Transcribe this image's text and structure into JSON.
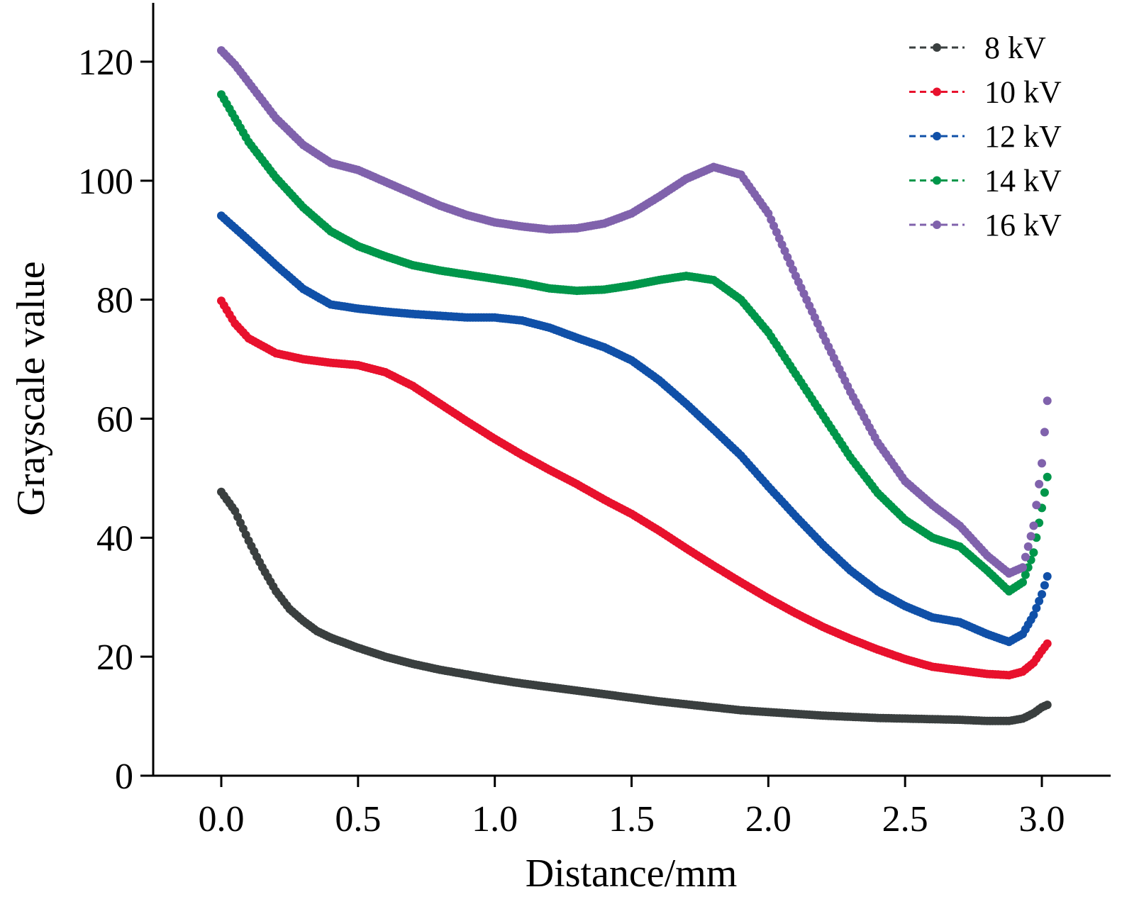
{
  "chart_data": {
    "type": "scatter",
    "title": "",
    "xlabel": "Distance/mm",
    "ylabel": "Grayscale value",
    "xlim": [
      -0.25,
      3.25
    ],
    "ylim": [
      0,
      130
    ],
    "xticks": [
      "0.0",
      "0.5",
      "1.0",
      "1.5",
      "2.0",
      "2.5",
      "3.0"
    ],
    "xtick_values": [
      0,
      0.5,
      1.0,
      1.5,
      2.0,
      2.5,
      3.0
    ],
    "yticks": [
      "0",
      "20",
      "40",
      "60",
      "80",
      "100",
      "120"
    ],
    "ytick_values": [
      0,
      20,
      40,
      60,
      80,
      100,
      120
    ],
    "grid": false,
    "legend_position": "top-right",
    "series": [
      {
        "name": "8 kV",
        "color": "#3a3f3f",
        "points": [
          [
            0.0,
            47.7
          ],
          [
            0.05,
            44.5
          ],
          [
            0.1,
            39.5
          ],
          [
            0.15,
            35.0
          ],
          [
            0.2,
            31.0
          ],
          [
            0.25,
            28.0
          ],
          [
            0.3,
            26.0
          ],
          [
            0.35,
            24.3
          ],
          [
            0.4,
            23.2
          ],
          [
            0.5,
            21.5
          ],
          [
            0.6,
            20.0
          ],
          [
            0.7,
            18.8
          ],
          [
            0.8,
            17.8
          ],
          [
            0.9,
            17.0
          ],
          [
            1.0,
            16.2
          ],
          [
            1.1,
            15.5
          ],
          [
            1.2,
            14.9
          ],
          [
            1.3,
            14.3
          ],
          [
            1.4,
            13.7
          ],
          [
            1.5,
            13.1
          ],
          [
            1.6,
            12.5
          ],
          [
            1.7,
            12.0
          ],
          [
            1.8,
            11.5
          ],
          [
            1.9,
            11.0
          ],
          [
            2.0,
            10.7
          ],
          [
            2.1,
            10.4
          ],
          [
            2.2,
            10.1
          ],
          [
            2.3,
            9.9
          ],
          [
            2.4,
            9.7
          ],
          [
            2.5,
            9.6
          ],
          [
            2.6,
            9.5
          ],
          [
            2.7,
            9.4
          ],
          [
            2.8,
            9.2
          ],
          [
            2.88,
            9.2
          ],
          [
            2.93,
            9.6
          ],
          [
            2.97,
            10.5
          ],
          [
            3.0,
            11.5
          ],
          [
            3.02,
            11.9
          ]
        ]
      },
      {
        "name": "10 kV",
        "color": "#e8112d",
        "points": [
          [
            0.0,
            79.8
          ],
          [
            0.05,
            76.0
          ],
          [
            0.1,
            73.5
          ],
          [
            0.2,
            71.0
          ],
          [
            0.3,
            70.0
          ],
          [
            0.4,
            69.4
          ],
          [
            0.5,
            69.0
          ],
          [
            0.6,
            67.8
          ],
          [
            0.7,
            65.5
          ],
          [
            0.8,
            62.5
          ],
          [
            0.9,
            59.5
          ],
          [
            1.0,
            56.6
          ],
          [
            1.1,
            53.9
          ],
          [
            1.2,
            51.4
          ],
          [
            1.3,
            49.0
          ],
          [
            1.4,
            46.4
          ],
          [
            1.5,
            44.0
          ],
          [
            1.6,
            41.2
          ],
          [
            1.7,
            38.2
          ],
          [
            1.8,
            35.3
          ],
          [
            1.9,
            32.5
          ],
          [
            2.0,
            29.8
          ],
          [
            2.1,
            27.3
          ],
          [
            2.2,
            25.0
          ],
          [
            2.3,
            23.0
          ],
          [
            2.4,
            21.2
          ],
          [
            2.5,
            19.6
          ],
          [
            2.6,
            18.3
          ],
          [
            2.7,
            17.7
          ],
          [
            2.8,
            17.1
          ],
          [
            2.88,
            16.9
          ],
          [
            2.93,
            17.5
          ],
          [
            2.97,
            19.0
          ],
          [
            3.0,
            21.0
          ],
          [
            3.02,
            22.2
          ]
        ]
      },
      {
        "name": "12 kV",
        "color": "#1050a8",
        "points": [
          [
            0.0,
            94.1
          ],
          [
            0.1,
            90.0
          ],
          [
            0.2,
            85.8
          ],
          [
            0.3,
            81.8
          ],
          [
            0.4,
            79.2
          ],
          [
            0.5,
            78.5
          ],
          [
            0.6,
            78.0
          ],
          [
            0.7,
            77.6
          ],
          [
            0.8,
            77.3
          ],
          [
            0.9,
            77.0
          ],
          [
            1.0,
            77.0
          ],
          [
            1.1,
            76.5
          ],
          [
            1.2,
            75.3
          ],
          [
            1.3,
            73.6
          ],
          [
            1.4,
            72.0
          ],
          [
            1.5,
            69.8
          ],
          [
            1.6,
            66.5
          ],
          [
            1.7,
            62.5
          ],
          [
            1.8,
            58.2
          ],
          [
            1.9,
            53.8
          ],
          [
            2.0,
            48.6
          ],
          [
            2.1,
            43.6
          ],
          [
            2.2,
            38.8
          ],
          [
            2.3,
            34.5
          ],
          [
            2.4,
            31.0
          ],
          [
            2.5,
            28.5
          ],
          [
            2.6,
            26.6
          ],
          [
            2.7,
            25.8
          ],
          [
            2.8,
            23.8
          ],
          [
            2.88,
            22.5
          ],
          [
            2.93,
            23.8
          ],
          [
            2.97,
            27.0
          ],
          [
            3.0,
            30.5
          ],
          [
            3.02,
            33.5
          ]
        ]
      },
      {
        "name": "14 kV",
        "color": "#00964a",
        "points": [
          [
            0.0,
            114.5
          ],
          [
            0.05,
            110.5
          ],
          [
            0.1,
            106.5
          ],
          [
            0.2,
            100.5
          ],
          [
            0.3,
            95.5
          ],
          [
            0.4,
            91.5
          ],
          [
            0.5,
            89.0
          ],
          [
            0.6,
            87.3
          ],
          [
            0.7,
            85.8
          ],
          [
            0.8,
            84.9
          ],
          [
            0.9,
            84.2
          ],
          [
            1.0,
            83.5
          ],
          [
            1.1,
            82.8
          ],
          [
            1.2,
            81.9
          ],
          [
            1.3,
            81.5
          ],
          [
            1.4,
            81.7
          ],
          [
            1.5,
            82.4
          ],
          [
            1.6,
            83.3
          ],
          [
            1.7,
            84.0
          ],
          [
            1.8,
            83.3
          ],
          [
            1.9,
            80.0
          ],
          [
            2.0,
            74.5
          ],
          [
            2.1,
            67.5
          ],
          [
            2.2,
            60.5
          ],
          [
            2.3,
            53.5
          ],
          [
            2.4,
            47.5
          ],
          [
            2.5,
            43.0
          ],
          [
            2.6,
            40.0
          ],
          [
            2.7,
            38.5
          ],
          [
            2.8,
            34.5
          ],
          [
            2.88,
            31.0
          ],
          [
            2.93,
            32.5
          ],
          [
            2.97,
            37.5
          ],
          [
            3.0,
            45.0
          ],
          [
            3.02,
            50.2
          ]
        ]
      },
      {
        "name": "16 kV",
        "color": "#8062ac",
        "points": [
          [
            0.0,
            121.9
          ],
          [
            0.05,
            119.5
          ],
          [
            0.1,
            116.5
          ],
          [
            0.2,
            110.5
          ],
          [
            0.3,
            106.0
          ],
          [
            0.4,
            103.0
          ],
          [
            0.5,
            101.8
          ],
          [
            0.6,
            99.8
          ],
          [
            0.7,
            97.8
          ],
          [
            0.8,
            95.8
          ],
          [
            0.9,
            94.2
          ],
          [
            1.0,
            93.0
          ],
          [
            1.1,
            92.3
          ],
          [
            1.2,
            91.8
          ],
          [
            1.3,
            92.0
          ],
          [
            1.4,
            92.8
          ],
          [
            1.5,
            94.5
          ],
          [
            1.6,
            97.3
          ],
          [
            1.7,
            100.3
          ],
          [
            1.8,
            102.3
          ],
          [
            1.9,
            101.0
          ],
          [
            2.0,
            94.5
          ],
          [
            2.1,
            84.0
          ],
          [
            2.2,
            74.0
          ],
          [
            2.3,
            64.5
          ],
          [
            2.4,
            56.0
          ],
          [
            2.5,
            49.5
          ],
          [
            2.6,
            45.5
          ],
          [
            2.7,
            42.0
          ],
          [
            2.8,
            37.0
          ],
          [
            2.88,
            34.0
          ],
          [
            2.93,
            35.0
          ],
          [
            2.97,
            42.0
          ],
          [
            3.0,
            52.5
          ],
          [
            3.02,
            63.0
          ]
        ]
      }
    ]
  }
}
